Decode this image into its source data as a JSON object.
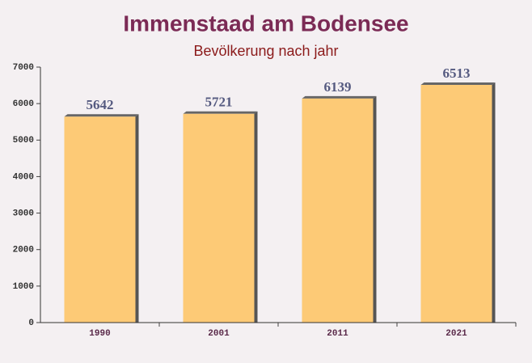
{
  "chart_data": {
    "type": "bar",
    "title": "Immenstaad am Bodensee",
    "subtitle": "Bevölkerung nach jahr",
    "categories": [
      "1990",
      "2001",
      "2011",
      "2021"
    ],
    "values": [
      5642,
      5721,
      6139,
      6513
    ],
    "color": "#fdc76b",
    "ylim": [
      0,
      7000
    ],
    "yticks": [
      0,
      1000,
      2000,
      3000,
      4000,
      5000,
      6000,
      7000
    ]
  }
}
